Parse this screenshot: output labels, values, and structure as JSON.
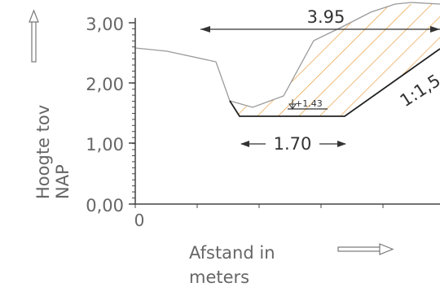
{
  "axes": {
    "y_label_line1": "Hoogte tov",
    "y_label_line2": "NAP",
    "x_label_line1": "Afstand in",
    "x_label_line2": "meters",
    "y_ticks": [
      "0,00",
      "1,00",
      "2,00",
      "3,00"
    ],
    "x_tick_origin": "0"
  },
  "annotations": {
    "top_width": "3.95",
    "bottom_width": "1.70",
    "slope": "1:1,5",
    "water_level": "+1.43"
  },
  "icons": {
    "y_arrow": "up-arrow-icon",
    "x_arrow": "right-arrow-icon"
  },
  "colors": {
    "hatch": "#e8922a",
    "terrain": "#9a9a9a",
    "profile": "#222222",
    "axis": "#444444"
  }
}
